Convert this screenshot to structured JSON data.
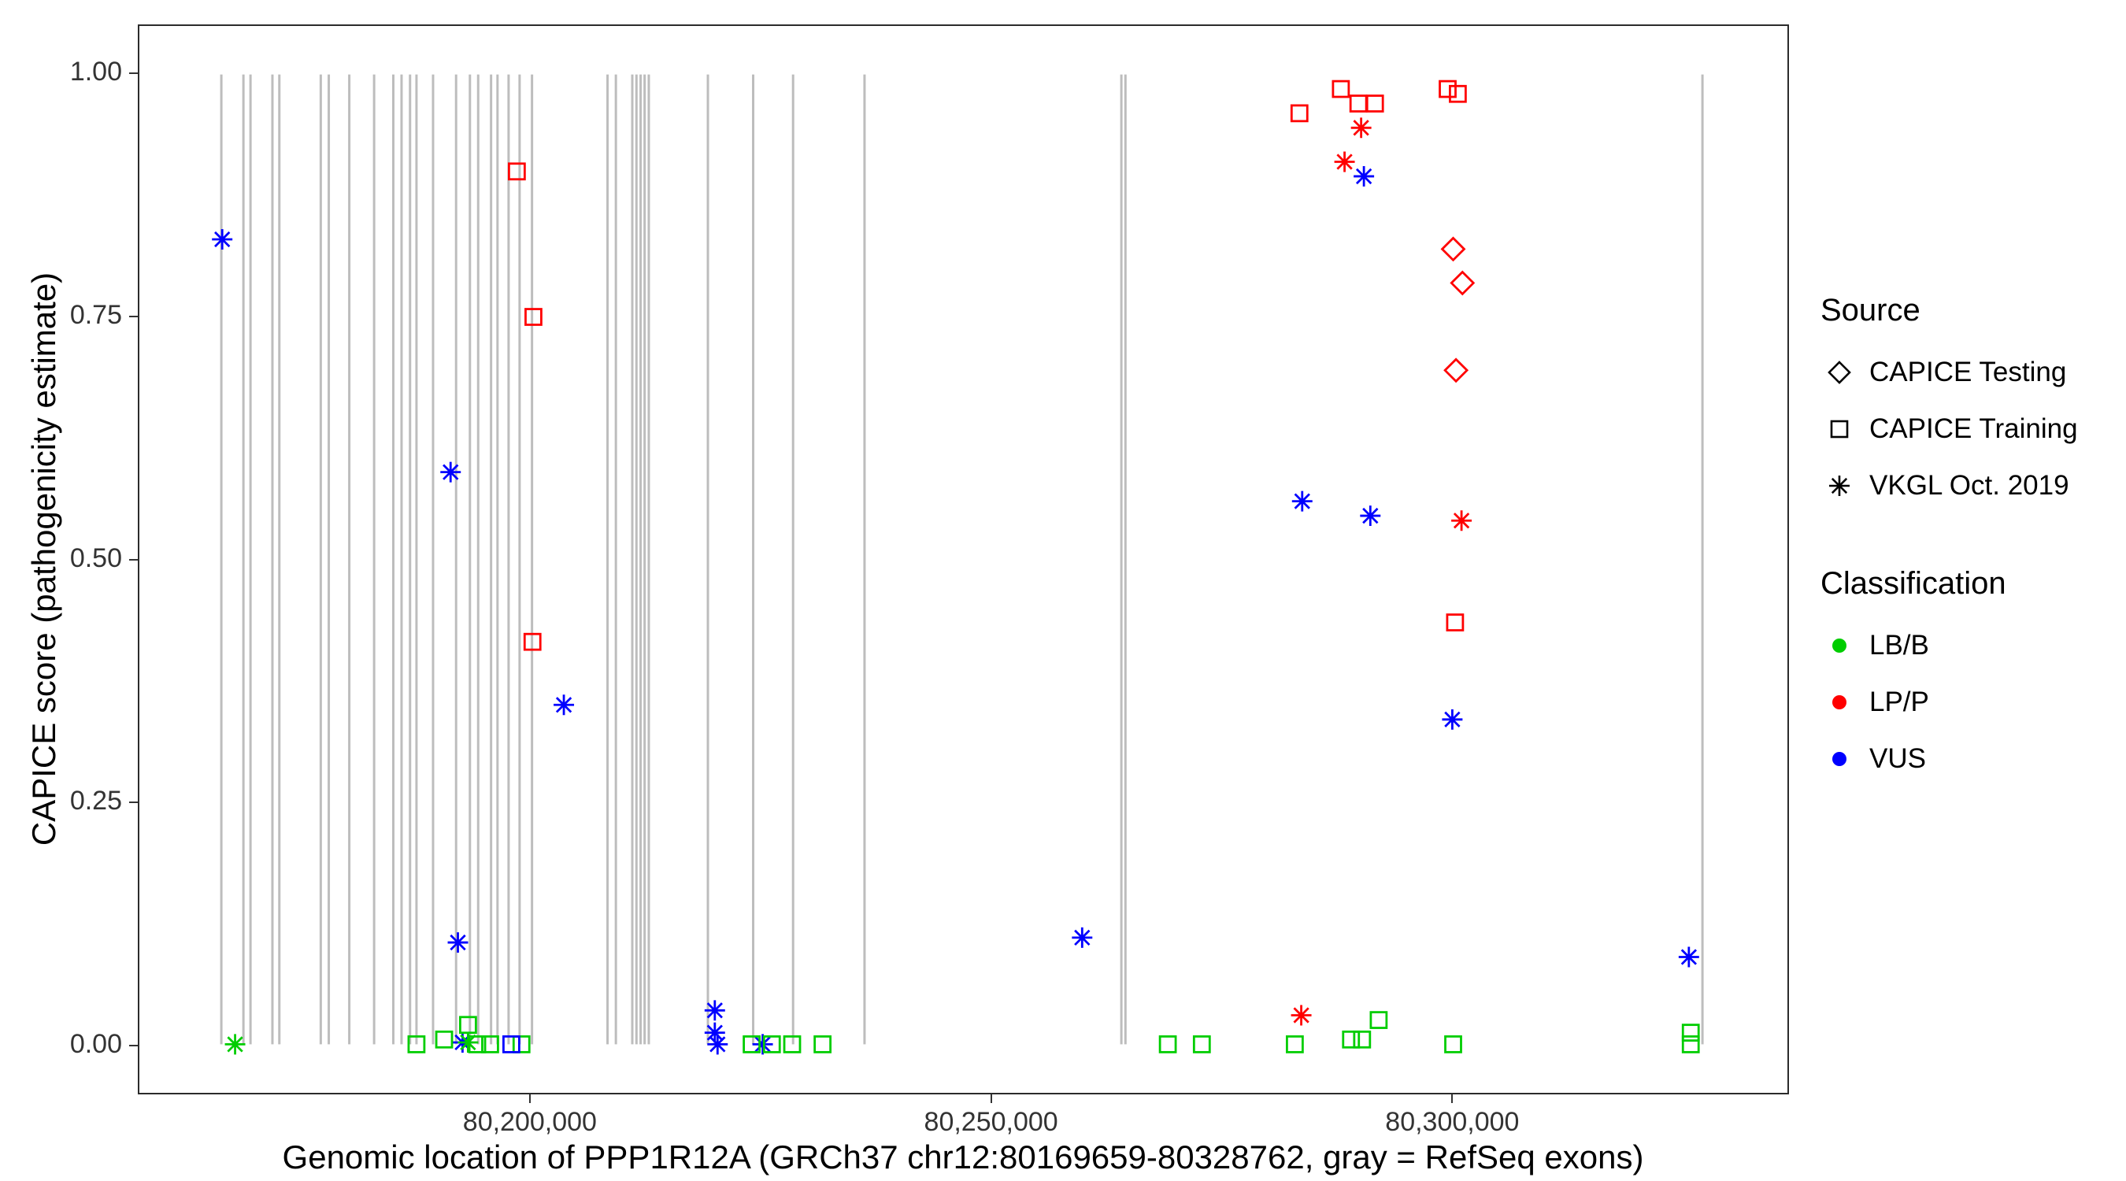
{
  "figure": {
    "x_title": "Genomic location of PPP1R12A (GRCh37 chr12:80169659-80328762, gray = RefSeq exons)",
    "y_title": "CAPICE score (pathogenicity estimate)"
  },
  "legend": {
    "source_title": "Source",
    "source_items": [
      {
        "label": "CAPICE Testing",
        "shape": "diamond"
      },
      {
        "label": "CAPICE Training",
        "shape": "square"
      },
      {
        "label": "VKGL Oct. 2019",
        "shape": "asterisk"
      }
    ],
    "classification_title": "Classification",
    "classification_items": [
      {
        "label": "LB/B",
        "color": "#00CD00"
      },
      {
        "label": "LP/P",
        "color": "#FF0000"
      },
      {
        "label": "VUS",
        "color": "#0000FF"
      }
    ]
  },
  "chart_data": {
    "type": "scatter",
    "title": "",
    "xlabel": "Genomic location of PPP1R12A (GRCh37 chr12:80169659-80328762, gray = RefSeq exons)",
    "ylabel": "CAPICE score (pathogenicity estimate)",
    "xlim": [
      80157500,
      80336500
    ],
    "ylim": [
      -0.05,
      1.05
    ],
    "x_ticks": [
      {
        "value": 80200000,
        "label": "80,200,000"
      },
      {
        "value": 80250000,
        "label": "80,250,000"
      },
      {
        "value": 80300000,
        "label": "80,300,000"
      }
    ],
    "y_ticks": [
      {
        "value": 0.0,
        "label": "0.00"
      },
      {
        "value": 0.25,
        "label": "0.25"
      },
      {
        "value": 0.5,
        "label": "0.50"
      },
      {
        "value": 0.75,
        "label": "0.75"
      },
      {
        "value": 1.0,
        "label": "1.00"
      }
    ],
    "colors": {
      "LB/B": "#00CD00",
      "LP/P": "#FF0000",
      "VUS": "#0000FF"
    },
    "shapes": {
      "CAPICE Testing": "diamond",
      "CAPICE Training": "square",
      "VKGL Oct. 2019": "asterisk"
    },
    "exon_color": "#BDBDBD",
    "exons": [
      80166400,
      80168800,
      80169570,
      80171950,
      80172700,
      80177200,
      80178070,
      80180300,
      80183000,
      80185080,
      80185980,
      80186900,
      80187600,
      80189400,
      80191900,
      80193400,
      80194300,
      80195700,
      80196400,
      80197600,
      80198800,
      80200150,
      80208350,
      80209250,
      80211040,
      80211490,
      80211940,
      80212380,
      80212830,
      80219250,
      80224170,
      80228500,
      80236260,
      80264160,
      80264600,
      80327270
    ],
    "points": [
      {
        "x": 80166500,
        "y": 0.83,
        "source": "VKGL Oct. 2019",
        "classification": "VUS"
      },
      {
        "x": 80167900,
        "y": 0.0,
        "source": "VKGL Oct. 2019",
        "classification": "LB/B"
      },
      {
        "x": 80191300,
        "y": 0.59,
        "source": "VKGL Oct. 2019",
        "classification": "VUS"
      },
      {
        "x": 80192100,
        "y": 0.105,
        "source": "VKGL Oct. 2019",
        "classification": "VUS"
      },
      {
        "x": 80203600,
        "y": 0.35,
        "source": "VKGL Oct. 2019",
        "classification": "VUS"
      },
      {
        "x": 80192600,
        "y": 0.002,
        "source": "VKGL Oct. 2019",
        "classification": "VUS"
      },
      {
        "x": 80193200,
        "y": 0.002,
        "source": "VKGL Oct. 2019",
        "classification": "LB/B"
      },
      {
        "x": 80220000,
        "y": 0.035,
        "source": "VKGL Oct. 2019",
        "classification": "VUS"
      },
      {
        "x": 80220000,
        "y": 0.012,
        "source": "VKGL Oct. 2019",
        "classification": "VUS"
      },
      {
        "x": 80220300,
        "y": 0.0,
        "source": "VKGL Oct. 2019",
        "classification": "VUS"
      },
      {
        "x": 80225200,
        "y": 0.0,
        "source": "VKGL Oct. 2019",
        "classification": "VUS"
      },
      {
        "x": 80259900,
        "y": 0.11,
        "source": "VKGL Oct. 2019",
        "classification": "VUS"
      },
      {
        "x": 80283800,
        "y": 0.56,
        "source": "VKGL Oct. 2019",
        "classification": "VUS"
      },
      {
        "x": 80283700,
        "y": 0.03,
        "source": "VKGL Oct. 2019",
        "classification": "LP/P"
      },
      {
        "x": 80288400,
        "y": 0.91,
        "source": "VKGL Oct. 2019",
        "classification": "LP/P"
      },
      {
        "x": 80290200,
        "y": 0.945,
        "source": "VKGL Oct. 2019",
        "classification": "LP/P"
      },
      {
        "x": 80290500,
        "y": 0.895,
        "source": "VKGL Oct. 2019",
        "classification": "VUS"
      },
      {
        "x": 80291200,
        "y": 0.545,
        "source": "VKGL Oct. 2019",
        "classification": "VUS"
      },
      {
        "x": 80301100,
        "y": 0.54,
        "source": "VKGL Oct. 2019",
        "classification": "LP/P"
      },
      {
        "x": 80300100,
        "y": 0.335,
        "source": "VKGL Oct. 2019",
        "classification": "VUS"
      },
      {
        "x": 80325800,
        "y": 0.09,
        "source": "VKGL Oct. 2019",
        "classification": "VUS"
      },
      {
        "x": 80187600,
        "y": 0.0,
        "source": "CAPICE Training",
        "classification": "LB/B"
      },
      {
        "x": 80190600,
        "y": 0.005,
        "source": "CAPICE Training",
        "classification": "LB/B"
      },
      {
        "x": 80193200,
        "y": 0.02,
        "source": "CAPICE Training",
        "classification": "LB/B"
      },
      {
        "x": 80194200,
        "y": 0.0,
        "source": "CAPICE Training",
        "classification": "LB/B"
      },
      {
        "x": 80195600,
        "y": 0.0,
        "source": "CAPICE Training",
        "classification": "LB/B"
      },
      {
        "x": 80199000,
        "y": 0.0,
        "source": "CAPICE Training",
        "classification": "LB/B"
      },
      {
        "x": 80197900,
        "y": 0.0,
        "source": "CAPICE Training",
        "classification": "VUS"
      },
      {
        "x": 80224000,
        "y": 0.0,
        "source": "CAPICE Training",
        "classification": "LB/B"
      },
      {
        "x": 80226200,
        "y": 0.0,
        "source": "CAPICE Training",
        "classification": "LB/B"
      },
      {
        "x": 80228400,
        "y": 0.0,
        "source": "CAPICE Training",
        "classification": "LB/B"
      },
      {
        "x": 80231700,
        "y": 0.0,
        "source": "CAPICE Training",
        "classification": "LB/B"
      },
      {
        "x": 80269200,
        "y": 0.0,
        "source": "CAPICE Training",
        "classification": "LB/B"
      },
      {
        "x": 80272900,
        "y": 0.0,
        "source": "CAPICE Training",
        "classification": "LB/B"
      },
      {
        "x": 80283000,
        "y": 0.0,
        "source": "CAPICE Training",
        "classification": "LB/B"
      },
      {
        "x": 80289100,
        "y": 0.005,
        "source": "CAPICE Training",
        "classification": "LB/B"
      },
      {
        "x": 80290300,
        "y": 0.005,
        "source": "CAPICE Training",
        "classification": "LB/B"
      },
      {
        "x": 80292100,
        "y": 0.025,
        "source": "CAPICE Training",
        "classification": "LB/B"
      },
      {
        "x": 80300200,
        "y": 0.0,
        "source": "CAPICE Training",
        "classification": "LB/B"
      },
      {
        "x": 80326000,
        "y": 0.012,
        "source": "CAPICE Training",
        "classification": "LB/B"
      },
      {
        "x": 80326000,
        "y": 0.0,
        "source": "CAPICE Training",
        "classification": "LB/B"
      },
      {
        "x": 80198500,
        "y": 0.9,
        "source": "CAPICE Training",
        "classification": "LP/P"
      },
      {
        "x": 80200300,
        "y": 0.75,
        "source": "CAPICE Training",
        "classification": "LP/P"
      },
      {
        "x": 80200200,
        "y": 0.415,
        "source": "CAPICE Training",
        "classification": "LP/P"
      },
      {
        "x": 80283500,
        "y": 0.96,
        "source": "CAPICE Training",
        "classification": "LP/P"
      },
      {
        "x": 80288000,
        "y": 0.985,
        "source": "CAPICE Training",
        "classification": "LP/P"
      },
      {
        "x": 80289900,
        "y": 0.97,
        "source": "CAPICE Training",
        "classification": "LP/P"
      },
      {
        "x": 80291700,
        "y": 0.97,
        "source": "CAPICE Training",
        "classification": "LP/P"
      },
      {
        "x": 80299600,
        "y": 0.985,
        "source": "CAPICE Training",
        "classification": "LP/P"
      },
      {
        "x": 80300700,
        "y": 0.98,
        "source": "CAPICE Training",
        "classification": "LP/P"
      },
      {
        "x": 80300400,
        "y": 0.435,
        "source": "CAPICE Training",
        "classification": "LP/P"
      },
      {
        "x": 80300200,
        "y": 0.82,
        "source": "CAPICE Testing",
        "classification": "LP/P"
      },
      {
        "x": 80301200,
        "y": 0.785,
        "source": "CAPICE Testing",
        "classification": "LP/P"
      },
      {
        "x": 80300500,
        "y": 0.695,
        "source": "CAPICE Testing",
        "classification": "LP/P"
      }
    ]
  }
}
